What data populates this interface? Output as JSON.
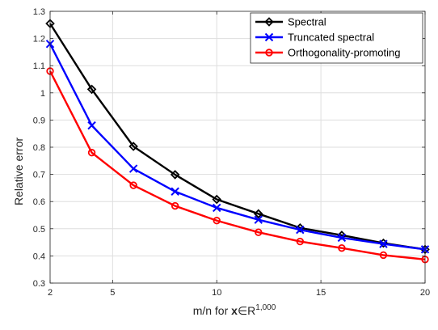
{
  "chart_data": {
    "type": "line",
    "title": "",
    "xlabel_parts": {
      "prefix": "m/n for ",
      "vector": "x",
      "set_symbol": "∈R",
      "exponent": "1,000"
    },
    "ylabel": "Relative error",
    "xlim": [
      2,
      20
    ],
    "ylim": [
      0.3,
      1.3
    ],
    "xticks": [
      2,
      5,
      10,
      15,
      20
    ],
    "yticks": [
      0.3,
      0.4,
      0.5,
      0.6,
      0.7,
      0.8,
      0.9,
      1,
      1.1,
      1.2,
      1.3
    ],
    "grid": true,
    "legend_position": "top-right",
    "x": [
      2,
      4,
      6,
      8,
      10,
      12,
      14,
      16,
      18,
      20
    ],
    "series": [
      {
        "name": "Spectral",
        "color": "#000000",
        "marker": "diamond",
        "values": [
          1.255,
          1.013,
          0.803,
          0.699,
          0.608,
          0.555,
          0.503,
          0.476,
          0.447,
          0.424
        ]
      },
      {
        "name": "Truncated spectral",
        "color": "#0000ff",
        "marker": "x",
        "values": [
          1.18,
          0.88,
          0.721,
          0.637,
          0.577,
          0.533,
          0.496,
          0.467,
          0.444,
          0.424
        ]
      },
      {
        "name": "Orthogonality-promoting",
        "color": "#ff0000",
        "marker": "circle",
        "values": [
          1.08,
          0.78,
          0.66,
          0.584,
          0.53,
          0.487,
          0.453,
          0.429,
          0.403,
          0.387
        ]
      }
    ]
  }
}
